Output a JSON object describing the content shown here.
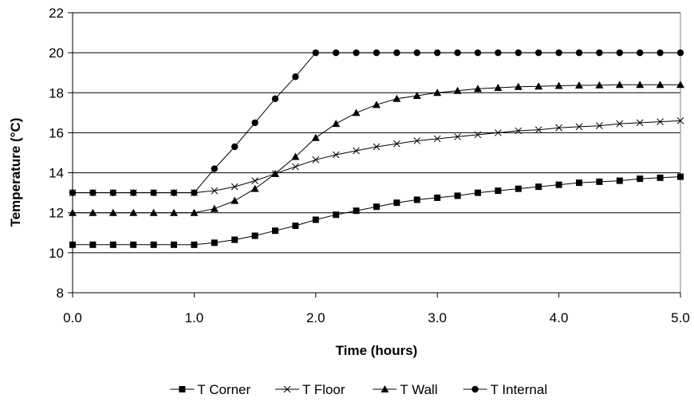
{
  "chart_data": {
    "type": "line",
    "title": "",
    "xlabel": "Time (hours)",
    "ylabel": "Temperature (°C)",
    "xlim": [
      0,
      5
    ],
    "ylim": [
      8,
      22
    ],
    "x_ticks": [
      "0.0",
      "1.0",
      "2.0",
      "3.0",
      "4.0",
      "5.0"
    ],
    "y_ticks": [
      "8",
      "10",
      "12",
      "14",
      "16",
      "18",
      "20",
      "22"
    ],
    "grid": "horizontal",
    "legend_position": "bottom",
    "x": [
      0,
      0.1667,
      0.3333,
      0.5,
      0.6667,
      0.8333,
      1.0,
      1.1667,
      1.3333,
      1.5,
      1.6667,
      1.8333,
      2.0,
      2.1667,
      2.3333,
      2.5,
      2.6667,
      2.8333,
      3.0,
      3.1667,
      3.3333,
      3.5,
      3.6667,
      3.8333,
      4.0,
      4.1667,
      4.3333,
      4.5,
      4.6667,
      4.8333,
      5.0
    ],
    "series": [
      {
        "name": "T Corner",
        "marker": "square",
        "values": [
          10.4,
          10.4,
          10.4,
          10.4,
          10.4,
          10.4,
          10.4,
          10.5,
          10.65,
          10.85,
          11.1,
          11.35,
          11.65,
          11.9,
          12.1,
          12.3,
          12.5,
          12.65,
          12.75,
          12.85,
          13.0,
          13.1,
          13.2,
          13.3,
          13.4,
          13.5,
          13.55,
          13.6,
          13.7,
          13.75,
          13.8
        ]
      },
      {
        "name": "T Floor",
        "marker": "x",
        "values": [
          13.0,
          13.0,
          13.0,
          13.0,
          13.0,
          13.0,
          13.0,
          13.1,
          13.3,
          13.6,
          13.95,
          14.3,
          14.65,
          14.9,
          15.1,
          15.3,
          15.45,
          15.6,
          15.7,
          15.8,
          15.9,
          16.0,
          16.1,
          16.15,
          16.25,
          16.3,
          16.35,
          16.45,
          16.5,
          16.55,
          16.6
        ]
      },
      {
        "name": "T Wall",
        "marker": "triangle",
        "values": [
          12.0,
          12.0,
          12.0,
          12.0,
          12.0,
          12.0,
          12.0,
          12.2,
          12.6,
          13.2,
          13.95,
          14.8,
          15.75,
          16.45,
          17.0,
          17.4,
          17.7,
          17.85,
          18.0,
          18.1,
          18.2,
          18.25,
          18.3,
          18.32,
          18.35,
          18.37,
          18.38,
          18.4,
          18.4,
          18.4,
          18.4
        ]
      },
      {
        "name": "T Internal",
        "marker": "circle",
        "values": [
          13.0,
          13.0,
          13.0,
          13.0,
          13.0,
          13.0,
          13.0,
          14.2,
          15.3,
          16.5,
          17.7,
          18.8,
          20.0,
          20.0,
          20.0,
          20.0,
          20.0,
          20.0,
          20.0,
          20.0,
          20.0,
          20.0,
          20.0,
          20.0,
          20.0,
          20.0,
          20.0,
          20.0,
          20.0,
          20.0,
          20.0
        ]
      }
    ]
  }
}
